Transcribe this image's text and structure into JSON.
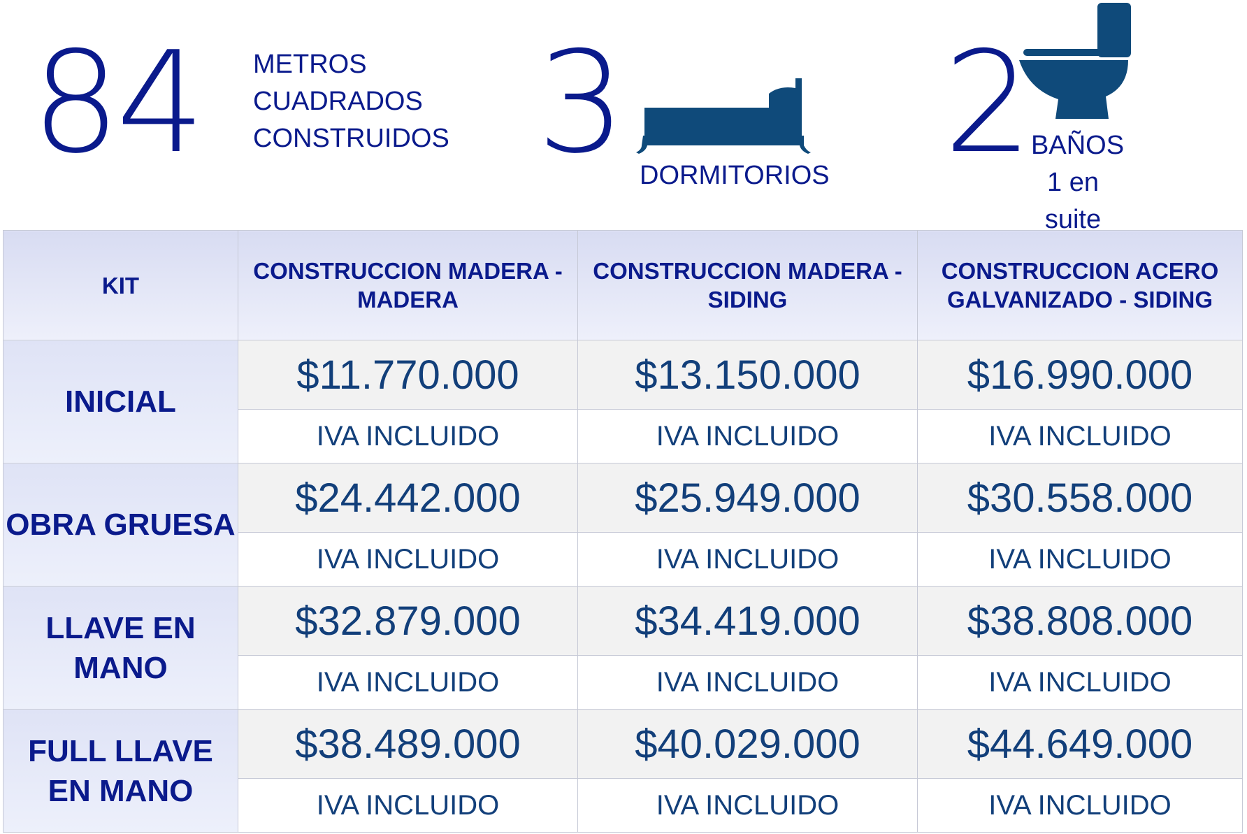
{
  "stats": {
    "area": {
      "value": "84",
      "label_lines": [
        "METROS",
        "CUADRADOS",
        "CONSTRUIDOS"
      ]
    },
    "bedrooms": {
      "value": "3",
      "label": "DORMITORIOS",
      "icon": "bed-icon"
    },
    "bathrooms": {
      "value": "2",
      "label_lines": [
        "BAÑOS",
        "1 en",
        "suite"
      ],
      "icon": "toilet-icon"
    }
  },
  "colors": {
    "navy": "#0a1a8c",
    "steel_blue": "#0f4a7a",
    "price_blue": "#123f7a"
  },
  "table": {
    "headers": [
      "KIT",
      "CONSTRUCCION MADERA - MADERA",
      "CONSTRUCCION MADERA - SIDING",
      "CONSTRUCCION ACERO GALVANIZADO - SIDING"
    ],
    "iva_note": "IVA INCLUIDO",
    "rows": [
      {
        "kit": "INICIAL",
        "prices": [
          "$11.770.000",
          "$13.150.000",
          "$16.990.000"
        ]
      },
      {
        "kit": "OBRA GRUESA",
        "prices": [
          "$24.442.000",
          "$25.949.000",
          "$30.558.000"
        ]
      },
      {
        "kit": "LLAVE EN MANO",
        "prices": [
          "$32.879.000",
          "$34.419.000",
          "$38.808.000"
        ]
      },
      {
        "kit": "FULL LLAVE EN MANO",
        "prices": [
          "$38.489.000",
          "$40.029.000",
          "$44.649.000"
        ]
      }
    ]
  }
}
